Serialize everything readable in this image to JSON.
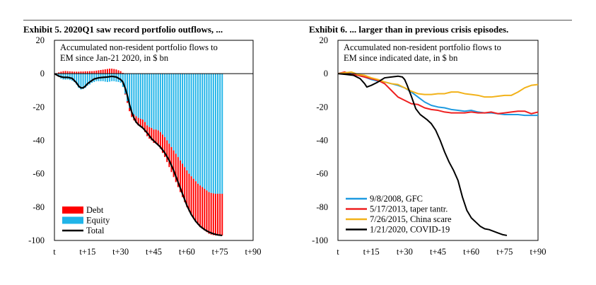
{
  "exhibits": [
    {
      "title": "Exhibit 5. 2020Q1 saw record portfolio outflows, ..."
    },
    {
      "title": "Exhibit 6. ... larger than in previous crisis episodes."
    }
  ],
  "chart_data": [
    {
      "type": "bar",
      "title": "Exhibit 5. 2020Q1 saw record portfolio outflows, ...",
      "subtitle": "Accumulated non-resident portfolio flows to EM since Jan-21 2020, in $ bn",
      "subtitle_lines": [
        "Accumulated non-resident portfolio flows to",
        "EM since Jan-21 2020, in $ bn"
      ],
      "xlabel": "",
      "ylabel": "",
      "x_range": [
        0,
        90
      ],
      "ylim": [
        -100,
        20
      ],
      "y_ticks": [
        20,
        0,
        -20,
        -40,
        -60,
        -80,
        -100
      ],
      "y_tick_labels": [
        "20",
        "0",
        "-20",
        "-40",
        "-60",
        "-80",
        "-100"
      ],
      "x_ticks": [
        0,
        15,
        30,
        45,
        60,
        75,
        90
      ],
      "x_tick_labels": [
        "t",
        "t+15",
        "t+30",
        "t+45",
        "t+60",
        "t+75",
        "t+90"
      ],
      "grid": false,
      "legend_position": "bottom-left",
      "legend": [
        {
          "label": "Debt",
          "color": "#ff0000",
          "kind": "box"
        },
        {
          "label": "Equity",
          "color": "#20b4e8",
          "kind": "box"
        },
        {
          "label": "Total",
          "color": "#000000",
          "kind": "line"
        }
      ],
      "series": [
        {
          "name": "Debt",
          "color": "#ff0000",
          "x": [
            1,
            2,
            3,
            4,
            5,
            6,
            7,
            8,
            9,
            10,
            11,
            12,
            13,
            14,
            15,
            16,
            17,
            18,
            19,
            20,
            21,
            22,
            23,
            24,
            25,
            26,
            27,
            28,
            29,
            30,
            31,
            32,
            33,
            34,
            35,
            36,
            37,
            38,
            39,
            40,
            41,
            42,
            43,
            44,
            45,
            46,
            47,
            48,
            49,
            50,
            51,
            52,
            53,
            54,
            55,
            56,
            57,
            58,
            59,
            60,
            61,
            62,
            63,
            64,
            65,
            66,
            67,
            68,
            69,
            70,
            71,
            72,
            73,
            74,
            75,
            76
          ],
          "values": [
            0.3,
            0.8,
            1.2,
            1.5,
            1.6,
            1.5,
            1.4,
            1.3,
            1.2,
            1.2,
            1.2,
            1.3,
            1.3,
            1.4,
            1.4,
            1.5,
            1.5,
            1.6,
            1.8,
            2.0,
            2.2,
            2.4,
            2.6,
            2.8,
            3.0,
            3.0,
            2.8,
            2.5,
            2.0,
            1.5,
            0.5,
            -0.5,
            -1.0,
            -2.0,
            -3.0,
            -3.5,
            -4.0,
            -4.5,
            -5.0,
            -5.5,
            -6.0,
            -6.5,
            -7.0,
            -7.5,
            -8.0,
            -8.5,
            -9.0,
            -10.0,
            -11.0,
            -12.0,
            -13.0,
            -14.0,
            -15.0,
            -16.0,
            -17.0,
            -18.0,
            -19.0,
            -20.0,
            -21.0,
            -22.0,
            -22.5,
            -23.0,
            -23.5,
            -24.0,
            -24.5,
            -25.0,
            -25.0,
            -25.0,
            -25.0,
            -25.0,
            -25.0,
            -25.0,
            -25.0,
            -25.0,
            -25.0,
            -25.0
          ]
        },
        {
          "name": "Equity",
          "color": "#20b4e8",
          "x": [
            1,
            2,
            3,
            4,
            5,
            6,
            7,
            8,
            9,
            10,
            11,
            12,
            13,
            14,
            15,
            16,
            17,
            18,
            19,
            20,
            21,
            22,
            23,
            24,
            25,
            26,
            27,
            28,
            29,
            30,
            31,
            32,
            33,
            34,
            35,
            36,
            37,
            38,
            39,
            40,
            41,
            42,
            43,
            44,
            45,
            46,
            47,
            48,
            49,
            50,
            51,
            52,
            53,
            54,
            55,
            56,
            57,
            58,
            59,
            60,
            61,
            62,
            63,
            64,
            65,
            66,
            67,
            68,
            69,
            70,
            71,
            72,
            73,
            74,
            75,
            76
          ],
          "values": [
            -0.5,
            -1.8,
            -3.0,
            -3.5,
            -3.6,
            -3.5,
            -3.8,
            -4.2,
            -5.0,
            -6.5,
            -8.5,
            -9.5,
            -9.2,
            -8.5,
            -7.2,
            -6.5,
            -5.5,
            -5.0,
            -4.5,
            -4.5,
            -4.5,
            -4.5,
            -4.8,
            -5.0,
            -4.8,
            -4.5,
            -4.5,
            -4.8,
            -5.0,
            -5.5,
            -8.0,
            -12.0,
            -16.5,
            -20.5,
            -23.0,
            -24.5,
            -25.5,
            -26.5,
            -27.0,
            -27.5,
            -29.0,
            -31.0,
            -32.0,
            -32.5,
            -33.5,
            -33.5,
            -34.0,
            -35.0,
            -36.5,
            -38.0,
            -40.0,
            -42.0,
            -44.0,
            -46.0,
            -48.0,
            -50.0,
            -52.0,
            -54.0,
            -56.0,
            -58.0,
            -60.0,
            -61.5,
            -63.0,
            -64.5,
            -66.0,
            -67.0,
            -68.0,
            -69.0,
            -70.0,
            -71.0,
            -71.5,
            -71.8,
            -72.0,
            -72.0,
            -72.0,
            -72.0
          ]
        },
        {
          "name": "Total",
          "color": "#000000",
          "x": [
            0,
            2,
            4,
            6,
            8,
            10,
            11,
            12,
            13,
            14,
            15,
            16,
            18,
            20,
            22,
            24,
            26,
            28,
            30,
            31,
            32,
            33,
            34,
            35,
            36,
            37,
            38,
            39,
            40,
            42,
            44,
            46,
            48,
            50,
            52,
            54,
            56,
            58,
            60,
            62,
            64,
            66,
            68,
            70,
            72,
            74,
            76
          ],
          "values": [
            0,
            -1.5,
            -2.2,
            -2.2,
            -2.8,
            -5.5,
            -7.5,
            -8.5,
            -8.5,
            -7.5,
            -6.0,
            -5.0,
            -3.2,
            -2.5,
            -2.2,
            -2.0,
            -1.6,
            -2.0,
            -3.5,
            -5.0,
            -8.5,
            -13.0,
            -18.5,
            -23.0,
            -26.5,
            -29.0,
            -30.5,
            -31.5,
            -32.5,
            -35.5,
            -39.0,
            -41.5,
            -44.0,
            -47.5,
            -52.0,
            -58.0,
            -65.0,
            -72.0,
            -79.0,
            -84.5,
            -88.5,
            -91.5,
            -93.5,
            -95.0,
            -96.0,
            -96.7,
            -97.0
          ]
        }
      ]
    },
    {
      "type": "line",
      "title": "Exhibit 6. ... larger than in previous crisis episodes.",
      "subtitle": "Accumulated non-resident portfolio flows to EM since indicated date, in $ bn",
      "subtitle_lines": [
        "Accumulated non-resident portfolio flows to",
        "EM since indicated date, in $ bn"
      ],
      "xlabel": "",
      "ylabel": "",
      "x_range": [
        0,
        90
      ],
      "ylim": [
        -100,
        20
      ],
      "y_ticks": [
        20,
        0,
        -20,
        -40,
        -60,
        -80,
        -100
      ],
      "y_tick_labels": [
        "20",
        "0",
        "-20",
        "-40",
        "-60",
        "-80",
        "-100"
      ],
      "x_ticks": [
        0,
        15,
        30,
        45,
        60,
        75,
        90
      ],
      "x_tick_labels": [
        "t",
        "t+15",
        "t+30",
        "t+45",
        "t+60",
        "t+75",
        "t+90"
      ],
      "grid": false,
      "legend_position": "bottom-left",
      "series": [
        {
          "name": "9/8/2008, GFC",
          "color": "#1e9ae0",
          "x": [
            0,
            3,
            6,
            9,
            12,
            15,
            18,
            21,
            24,
            27,
            30,
            33,
            36,
            39,
            42,
            45,
            48,
            51,
            54,
            57,
            60,
            63,
            66,
            69,
            72,
            75,
            78,
            81,
            84,
            87,
            90
          ],
          "values": [
            0,
            0.8,
            0,
            -1.0,
            -2.0,
            -3.5,
            -4.5,
            -5.0,
            -6.0,
            -7.0,
            -8.5,
            -11.0,
            -14.0,
            -17.0,
            -19.0,
            -20.0,
            -20.5,
            -21.5,
            -22.0,
            -22.5,
            -22.0,
            -23.0,
            -23.5,
            -23.5,
            -24.0,
            -24.5,
            -24.5,
            -24.5,
            -25.0,
            -25.0,
            -25.0
          ]
        },
        {
          "name": "5/17/2013, taper tantr.",
          "color": "#ee2020",
          "x": [
            0,
            3,
            6,
            9,
            12,
            15,
            18,
            21,
            24,
            27,
            30,
            33,
            36,
            39,
            42,
            45,
            48,
            51,
            54,
            57,
            60,
            63,
            66,
            69,
            72,
            75,
            78,
            81,
            84,
            87,
            90
          ],
          "values": [
            0,
            1.0,
            -0.5,
            -1.0,
            -2.0,
            -3.0,
            -4.0,
            -6.0,
            -10.0,
            -14.0,
            -16.0,
            -18.0,
            -18.5,
            -20.5,
            -21.5,
            -22.0,
            -23.0,
            -23.5,
            -23.5,
            -23.5,
            -23.0,
            -23.5,
            -23.5,
            -23.0,
            -24.0,
            -23.5,
            -23.0,
            -22.5,
            -22.5,
            -24.0,
            -23.0
          ]
        },
        {
          "name": "7/26/2015, China scare",
          "color": "#f2b21a",
          "x": [
            0,
            3,
            6,
            9,
            12,
            15,
            18,
            21,
            24,
            27,
            30,
            33,
            36,
            39,
            42,
            45,
            48,
            51,
            54,
            57,
            60,
            63,
            66,
            69,
            72,
            75,
            78,
            81,
            84,
            87,
            90
          ],
          "values": [
            0,
            0.5,
            1.0,
            -0.5,
            -1.0,
            -2.5,
            -3.5,
            -5.0,
            -6.0,
            -6.5,
            -8.5,
            -10.5,
            -12.0,
            -12.5,
            -12.5,
            -12.0,
            -12.0,
            -11.0,
            -11.0,
            -12.0,
            -12.5,
            -13.0,
            -14.0,
            -14.0,
            -13.5,
            -13.0,
            -13.0,
            -11.0,
            -8.5,
            -7.0,
            -6.5
          ]
        },
        {
          "name": "1/21/2020, COVID-19",
          "color": "#000000",
          "x": [
            0,
            4,
            7,
            10,
            12,
            13,
            15,
            18,
            21,
            24,
            27,
            29,
            30,
            31,
            33,
            35,
            37,
            40,
            42,
            44,
            46,
            48,
            50,
            52,
            54,
            56,
            58,
            60,
            62,
            64,
            66,
            68,
            70,
            72,
            74,
            76
          ],
          "values": [
            0,
            -0.5,
            -1.0,
            -3.0,
            -6.0,
            -8.0,
            -7.0,
            -5.0,
            -2.5,
            -2.0,
            -1.5,
            -2.0,
            -3.5,
            -6.5,
            -13.5,
            -21.0,
            -24.5,
            -27.5,
            -30.0,
            -34.0,
            -40.0,
            -47.0,
            -53.0,
            -58.0,
            -64.0,
            -74.0,
            -82.0,
            -86.5,
            -89.0,
            -91.5,
            -93.0,
            -93.5,
            -94.5,
            -95.5,
            -96.5,
            -97.0
          ]
        }
      ]
    }
  ]
}
